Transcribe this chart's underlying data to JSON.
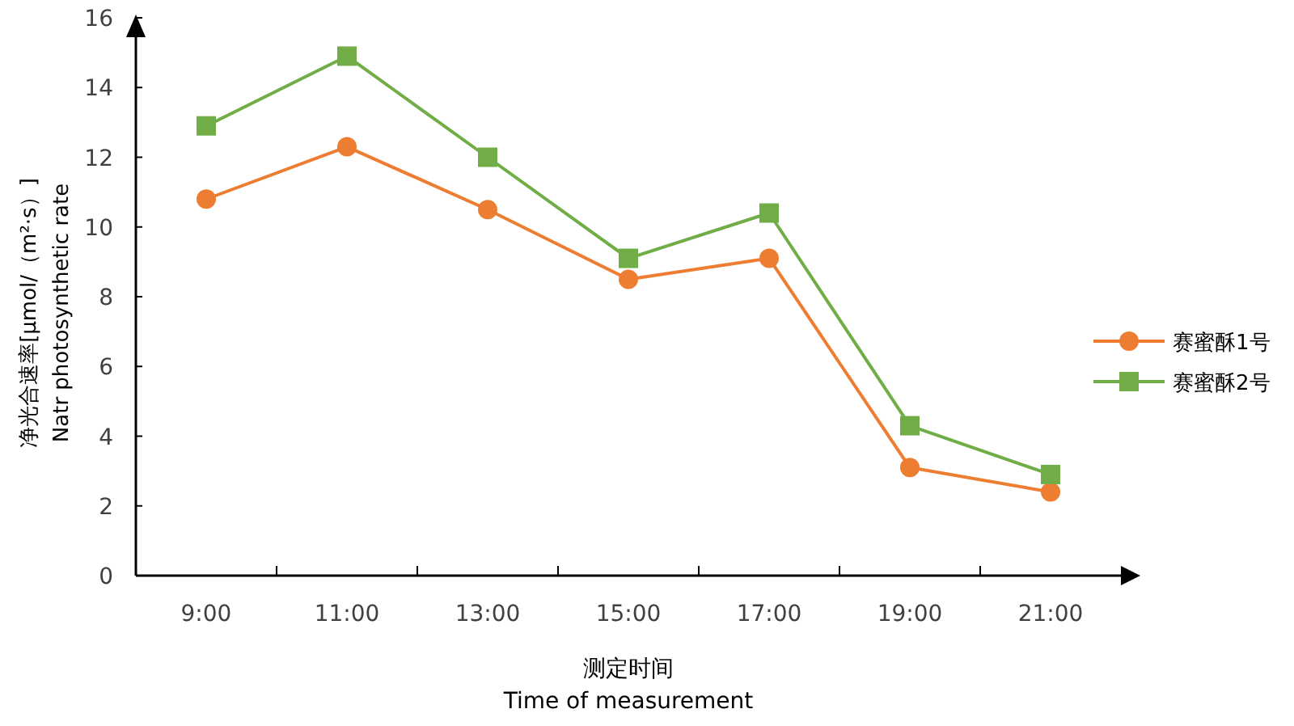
{
  "chart_data": {
    "type": "line",
    "xlabel": "测定时间\nTime of measurement",
    "ylabel": "净光合速率[μmol/（m²·s）]\nNatr photosynthetic rate",
    "categories": [
      "9:00",
      "11:00",
      "13:00",
      "15:00",
      "17:00",
      "19:00",
      "21:00"
    ],
    "ylim": [
      0,
      16
    ],
    "yticks": [
      0,
      2,
      4,
      6,
      8,
      10,
      12,
      14,
      16
    ],
    "grid": false,
    "legend": "right",
    "series": [
      {
        "name": "赛蜜酥1号",
        "color": "#ed7d31",
        "marker": "circle",
        "values": [
          10.8,
          12.3,
          10.5,
          8.5,
          9.1,
          3.1,
          2.4
        ]
      },
      {
        "name": "赛蜜酥2号",
        "color": "#70ad47",
        "marker": "square",
        "values": [
          12.9,
          14.9,
          12.0,
          9.1,
          10.4,
          4.3,
          2.9
        ]
      }
    ]
  }
}
